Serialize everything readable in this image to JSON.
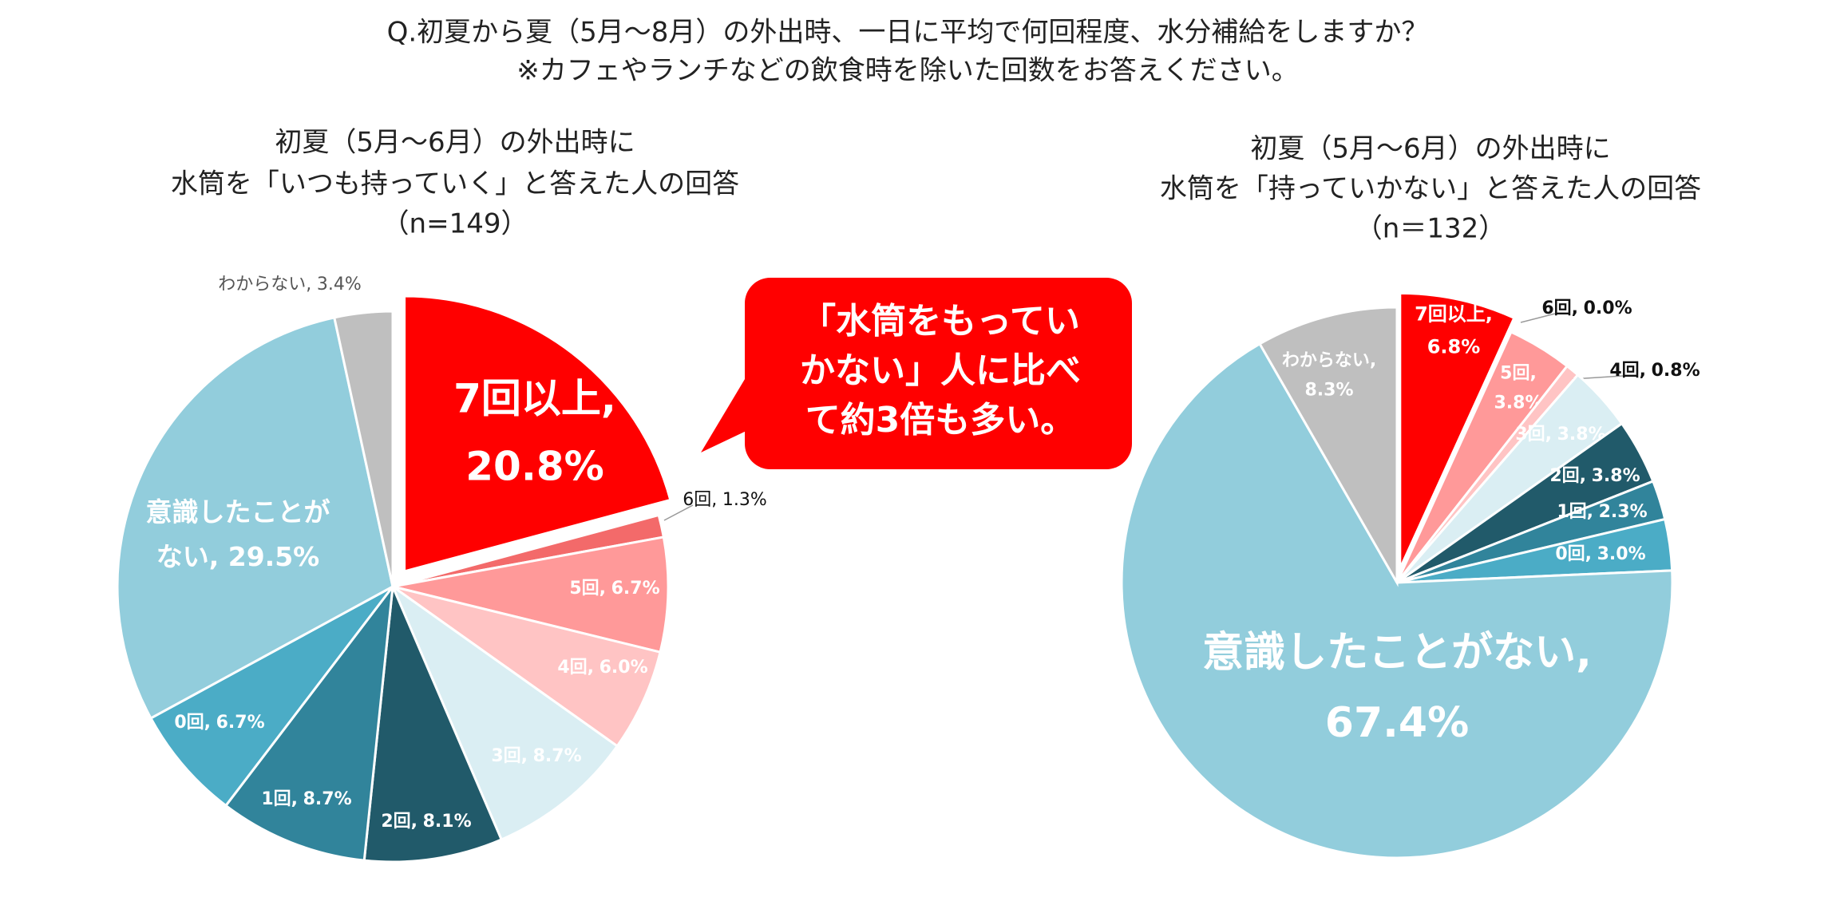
{
  "title": [
    "Q.初夏から夏（5月～8月）の外出時、一日に平均で何回程度、水分補給をしますか？",
    "※カフェやランチなどの飲食時を除いた回数をお答えください。"
  ],
  "callout": [
    "「水筒をもってい",
    "かない」人に比べ",
    "て約3倍も多い。"
  ],
  "chart_data": [
    {
      "type": "pie",
      "title": [
        "初夏（5月～6月）の外出時に",
        "水筒を「いつも持っていく」と答えた人の回答",
        "（n=149）"
      ],
      "categories": [
        "7回以上,",
        "6回,",
        "5回,",
        "4回,",
        "3回,",
        "2回,",
        "1回,",
        "0回,",
        "意識したことが",
        "わからない,"
      ],
      "values": [
        20.8,
        1.3,
        6.7,
        6.0,
        8.7,
        8.1,
        8.7,
        6.7,
        29.5,
        3.4
      ],
      "value_labels": [
        "20.8%",
        "1.3%",
        "6.7%",
        "6.0%",
        "8.7%",
        "8.1%",
        "8.7%",
        "6.7%",
        "ない, 29.5%",
        "3.4%"
      ],
      "colors": [
        "#ff0000",
        "#f36a6a",
        "#ff9999",
        "#ffc4c4",
        "#daeef3",
        "#215a6a",
        "#31849b",
        "#4bacc6",
        "#92cddc",
        "#bfbfbf"
      ]
    },
    {
      "type": "pie",
      "title": [
        "初夏（5月～6月）の外出時に",
        "水筒を「持っていかない」と答えた人の回答",
        "（n＝132）"
      ],
      "categories": [
        "7回以上,",
        "6回,",
        "5回,",
        "4回,",
        "3回,",
        "2回,",
        "1回,",
        "0回,",
        "意識したことがない,",
        "わからない,"
      ],
      "values": [
        6.8,
        0.0,
        3.8,
        0.8,
        3.8,
        3.8,
        2.3,
        3.0,
        67.4,
        8.3
      ],
      "value_labels": [
        "6.8%",
        "0.0%",
        "3.8%",
        "0.8%",
        "3.8%",
        "3.8%",
        "2.3%",
        "3.0%",
        "67.4%",
        "8.3%"
      ],
      "colors": [
        "#ff0000",
        "#f36a6a",
        "#ff9999",
        "#ffc4c4",
        "#daeef3",
        "#215a6a",
        "#31849b",
        "#4bacc6",
        "#92cddc",
        "#bfbfbf"
      ]
    }
  ]
}
